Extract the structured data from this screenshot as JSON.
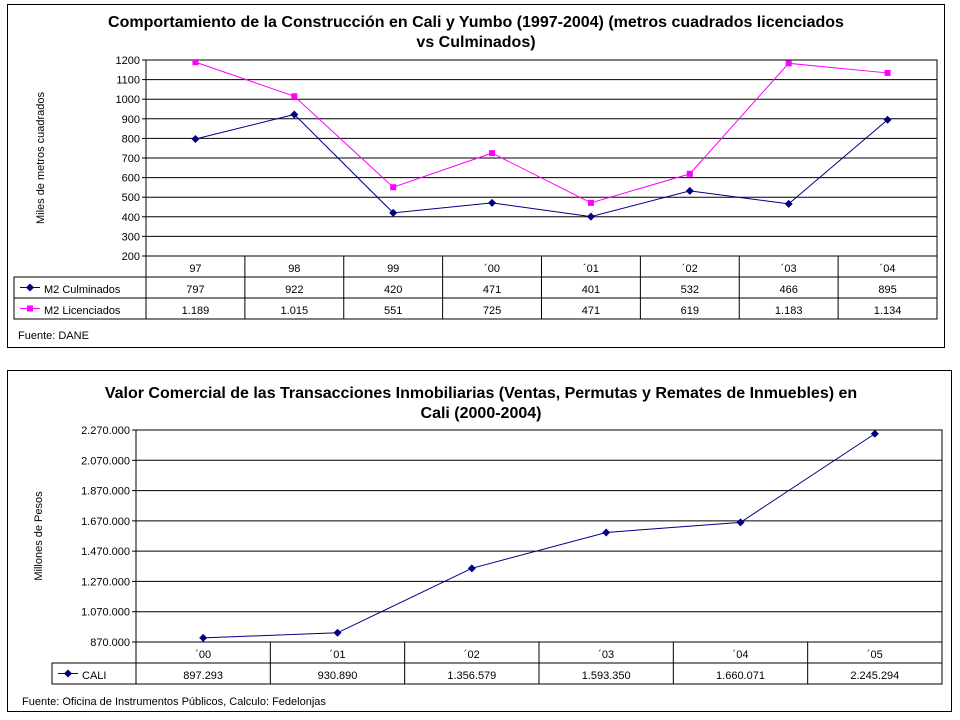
{
  "chart_data": [
    {
      "type": "line",
      "title": "Comportamiento de la Construcción en Cali y Yumbo (1997-2004) (metros cuadrados licenciados vs Culminados)",
      "title_lines": [
        "Comportamiento de la Construcción en Cali y Yumbo (1997-2004) (metros cuadrados licenciados",
        "vs Culminados)"
      ],
      "ylabel": "Miles de metros cuadrados",
      "ylim": [
        200,
        1200
      ],
      "yticks": [
        "200",
        "300",
        "400",
        "500",
        "600",
        "700",
        "800",
        "900",
        "1000",
        "1100",
        "1200"
      ],
      "categories": [
        "97",
        "98",
        "99",
        "´00",
        "´01",
        "´02",
        "´03",
        "´04"
      ],
      "grid": true,
      "legend": "data-table",
      "series": [
        {
          "name": "M2 Culminados",
          "values": [
            797,
            922,
            420,
            471,
            401,
            532,
            466,
            895
          ],
          "labels": [
            "797",
            "922",
            "420",
            "471",
            "401",
            "532",
            "466",
            "895"
          ],
          "color": "#000080",
          "marker": "diamond"
        },
        {
          "name": "M2 Licenciados",
          "values": [
            1189,
            1015,
            551,
            725,
            471,
            619,
            1183,
            1134
          ],
          "labels": [
            "1.189",
            "1.015",
            "551",
            "725",
            "471",
            "619",
            "1.183",
            "1.134"
          ],
          "color": "#ff00ff",
          "marker": "square"
        }
      ],
      "source": "Fuente:  DANE"
    },
    {
      "type": "line",
      "title": "Valor Comercial de las Transacciones Inmobiliarias (Ventas, Permutas y Remates de Inmuebles) en Cali (2000-2004)",
      "title_lines": [
        "Valor Comercial de las Transacciones Inmobiliarias (Ventas, Permutas y Remates de Inmuebles) en",
        "Cali (2000-2004)"
      ],
      "ylabel": "Millones de Pesos",
      "ylim": [
        870000,
        2270000
      ],
      "yticks": [
        "870.000",
        "1.070.000",
        "1.270.000",
        "1.470.000",
        "1.670.000",
        "1.870.000",
        "2.070.000",
        "2.270.000"
      ],
      "categories": [
        "´00",
        "´01",
        "´02",
        "´03",
        "´04",
        "´05"
      ],
      "grid": true,
      "legend": "data-table",
      "series": [
        {
          "name": "CALI",
          "values": [
            897293,
            930890,
            1356579,
            1593350,
            1660071,
            2245294
          ],
          "labels": [
            "897.293",
            "930.890",
            "1.356.579",
            "1.593.350",
            "1.660.071",
            "2.245.294"
          ],
          "color": "#000080",
          "marker": "diamond"
        }
      ],
      "source": "Fuente:  Oficina de Instrumentos Públicos,  Calculo:  Fedelonjas"
    }
  ]
}
